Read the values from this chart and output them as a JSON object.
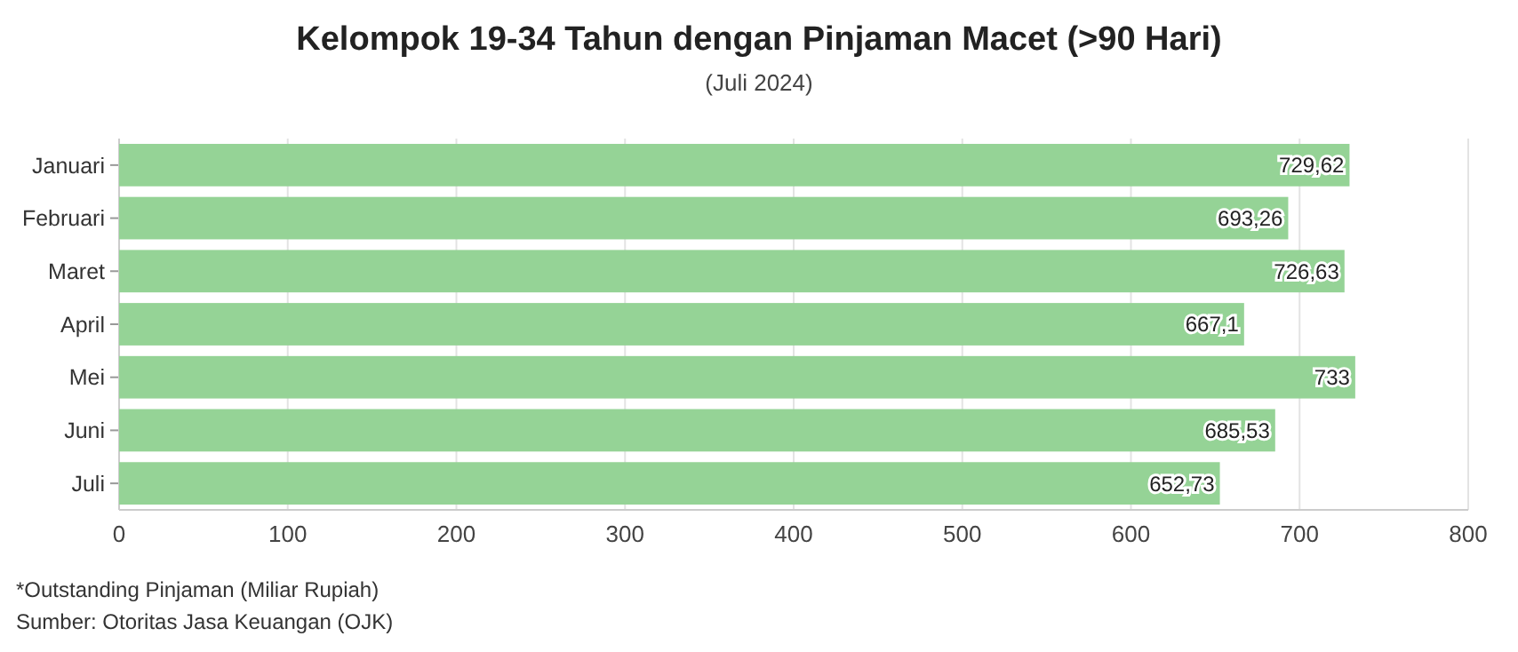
{
  "chart_data": {
    "type": "bar",
    "orientation": "horizontal",
    "title": "Kelompok 19-34 Tahun dengan Pinjaman Macet (>90 Hari)",
    "subtitle": "(Juli 2024)",
    "categories": [
      "Januari",
      "Februari",
      "Maret",
      "April",
      "Mei",
      "Juni",
      "Juli"
    ],
    "values": [
      729.62,
      693.26,
      726.63,
      667.1,
      733,
      685.53,
      652.73
    ],
    "value_labels": [
      "729,62",
      "693,26",
      "726,63",
      "667,1",
      "733",
      "685,53",
      "652,73"
    ],
    "color": "#95d396",
    "xlim": [
      0,
      800
    ],
    "xticks": [
      0,
      100,
      200,
      300,
      400,
      500,
      600,
      700,
      800
    ],
    "grid": "x",
    "annotations": [
      "*Outstanding Pinjaman (Miliar Rupiah)",
      "Sumber: Otoritas Jasa Keuangan (OJK)"
    ]
  }
}
